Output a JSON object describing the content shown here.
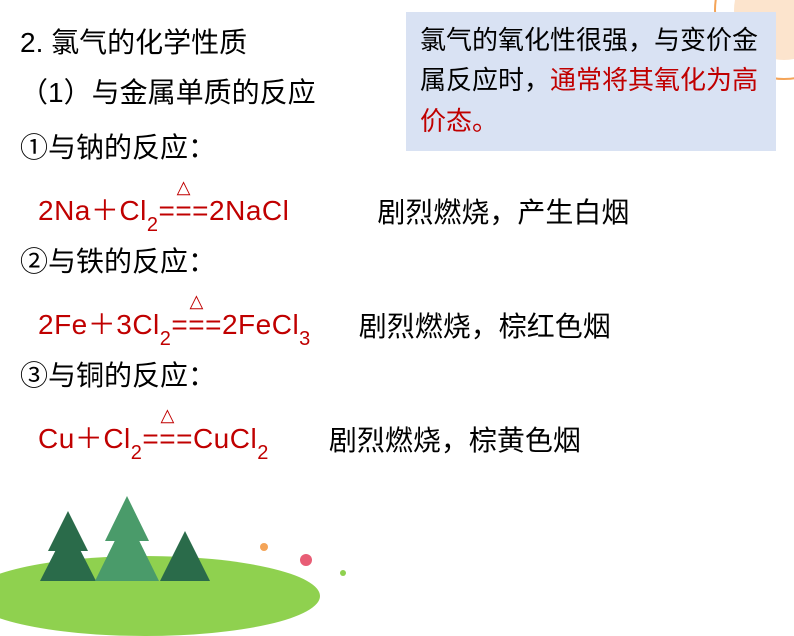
{
  "section": {
    "title": "2. 氯气的化学性质",
    "subtitle": "（1）与金属单质的反应"
  },
  "note": {
    "line1": "氯气的氧化性很强，与变价金属反应时，",
    "line2": "通常将其氧化为高价态。"
  },
  "reactions": [
    {
      "label": "①与钠的反应：",
      "equation_parts": {
        "left1": "2Na",
        "plus": "＋",
        "left2": "Cl",
        "sub1": "2",
        "eq": "===",
        "right1": "2NaCl"
      },
      "description": "剧烈燃烧，产生白烟"
    },
    {
      "label": "②与铁的反应：",
      "equation_parts": {
        "left1": "2Fe",
        "plus": "＋",
        "left2": "3Cl",
        "sub1": "2",
        "eq": "===",
        "right1": "2FeCl",
        "sub2": "3"
      },
      "description": "剧烈燃烧，棕红色烟"
    },
    {
      "label": "③与铜的反应：",
      "equation_parts": {
        "left1": "Cu",
        "plus": "＋",
        "left2": "Cl",
        "sub1": "2",
        "eq": "===",
        "right1": "CuCl",
        "sub2": "2"
      },
      "description": "剧烈燃烧，棕黄色烟"
    }
  ],
  "triangle_symbol": "△",
  "colors": {
    "text_black": "#000000",
    "text_red": "#c00000",
    "note_bg": "#d9e2f3",
    "tree_dark": "#2a6b4a",
    "tree_light": "#4a9b6a",
    "hill": "#8fd14f",
    "orange": "#f4a458",
    "pink": "#e85d75"
  }
}
